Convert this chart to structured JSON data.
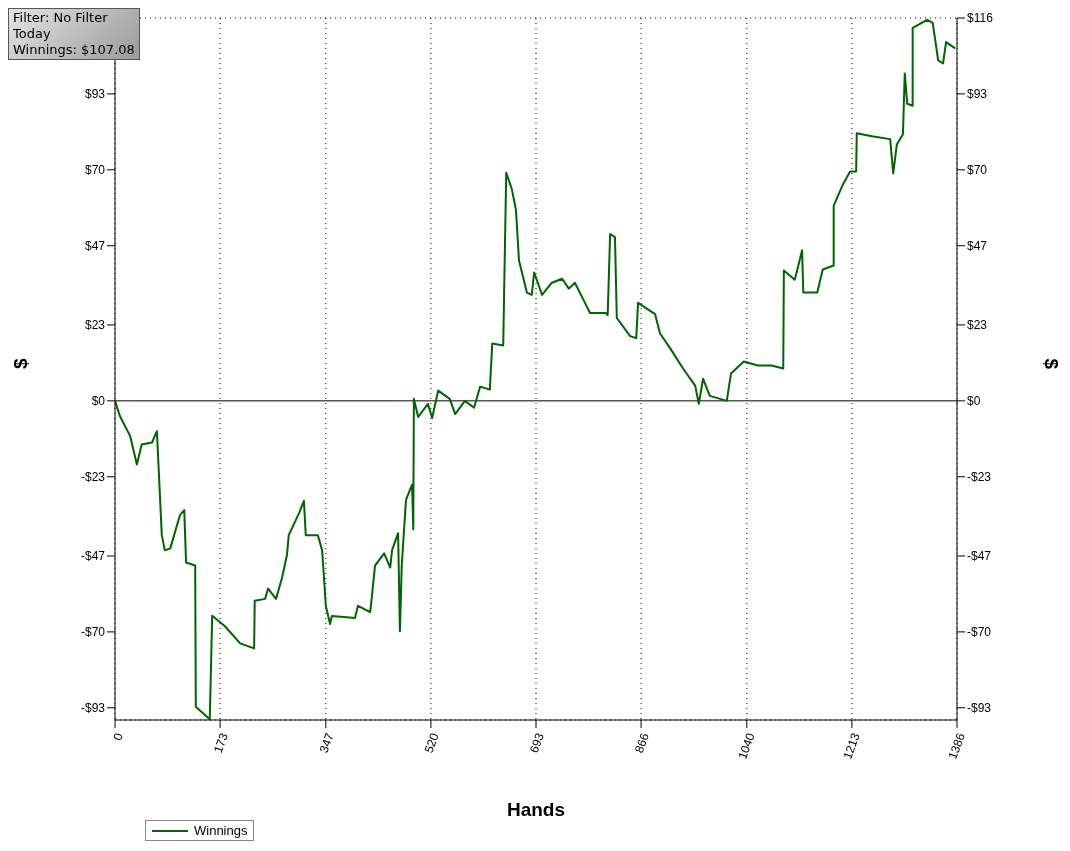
{
  "chart_data": {
    "type": "line",
    "xlabel": "Hands",
    "ylabel": "$",
    "y2label": "$",
    "annotations": [
      "Filter: No Filter",
      "Today",
      "Winnings: $107.08"
    ],
    "x": [
      0,
      8,
      25,
      36,
      44,
      61,
      69,
      77,
      82,
      91,
      107,
      114,
      117,
      132,
      133,
      156,
      160,
      181,
      206,
      229,
      230,
      247,
      252,
      265,
      275,
      283,
      286,
      303,
      311,
      314,
      334,
      341,
      347,
      354,
      357,
      395,
      400,
      420,
      423,
      428,
      443,
      453,
      456,
      466,
      469,
      472,
      479,
      489,
      491,
      492,
      499,
      515,
      522,
      532,
      551,
      560,
      576,
      591,
      601,
      617,
      621,
      639,
      644,
      653,
      660,
      665,
      678,
      686,
      690,
      703,
      719,
      736,
      747,
      757,
      772,
      782,
      808,
      811,
      815,
      823,
      826,
      848,
      858,
      861,
      889,
      897,
      914,
      935,
      955,
      961,
      968,
      979,
      996,
      1007,
      1014,
      1035,
      1058,
      1081,
      1100,
      1101,
      1119,
      1131,
      1133,
      1156,
      1165,
      1183,
      1183,
      1198,
      1210,
      1220,
      1221,
      1246,
      1276,
      1281,
      1287,
      1297,
      1300,
      1304,
      1313,
      1313,
      1337,
      1346,
      1355,
      1363,
      1368,
      1383
    ],
    "series": [
      {
        "name": "Winnings",
        "color": "#006400",
        "values": [
          0,
          -4.6,
          -10.7,
          -19.3,
          -13.2,
          -12.6,
          -9.2,
          -40.7,
          -45.3,
          -44.7,
          -34.6,
          -33.1,
          -49.0,
          -49.9,
          -92.7,
          -96.5,
          -65.1,
          -68.3,
          -73.5,
          -75.0,
          -60.6,
          -60.0,
          -56.9,
          -60.0,
          -53.6,
          -46.8,
          -40.7,
          -34.0,
          -30.3,
          -40.7,
          -40.7,
          -45.3,
          -62.1,
          -67.6,
          -65.2,
          -65.8,
          -62.1,
          -64.0,
          -59.1,
          -49.9,
          -46.2,
          -50.5,
          -45.3,
          -40.1,
          -69.8,
          -49.9,
          -30.0,
          -25.4,
          -38.9,
          0.6,
          -4.9,
          -0.9,
          -5.2,
          3.1,
          0.6,
          -4.0,
          0,
          -2.1,
          4.3,
          3.4,
          17.4,
          16.8,
          69.1,
          64.3,
          57.9,
          42.5,
          32.8,
          32.1,
          38.9,
          32.1,
          35.8,
          37.0,
          34.0,
          35.8,
          30.3,
          26.6,
          26.6,
          26.0,
          50.5,
          49.6,
          25.1,
          19.6,
          19.0,
          29.7,
          26.3,
          20.5,
          15.9,
          9.8,
          4.6,
          -0.9,
          6.7,
          1.5,
          0.6,
          0,
          8.3,
          11.9,
          10.7,
          10.7,
          9.8,
          39.5,
          36.7,
          45.6,
          32.8,
          32.8,
          39.8,
          41.0,
          59.1,
          65.5,
          69.5,
          69.5,
          81.1,
          80.2,
          79.3,
          68.9,
          77.7,
          80.8,
          99.2,
          90.0,
          89.4,
          113.0,
          115.4,
          114.5,
          103.2,
          102.2,
          108.7,
          106.8
        ]
      }
    ],
    "xlim": [
      0,
      1386
    ],
    "xticks": [
      0,
      173,
      347,
      520,
      693,
      866,
      1040,
      1213,
      1386
    ],
    "ylim": [
      -96.7,
      116
    ],
    "yticks": [
      {
        "value": -93,
        "label": "-$93"
      },
      {
        "value": -70,
        "label": "-$70"
      },
      {
        "value": -47,
        "label": "-$47"
      },
      {
        "value": -23,
        "label": "-$23"
      },
      {
        "value": 0,
        "label": "$0"
      },
      {
        "value": 23,
        "label": "$23"
      },
      {
        "value": 47,
        "label": "$47"
      },
      {
        "value": 70,
        "label": "$70"
      },
      {
        "value": 93,
        "label": "$93"
      }
    ],
    "y2lim": [
      -96.7,
      116
    ],
    "y2ticks": [
      {
        "value": -93,
        "label": "-$93"
      },
      {
        "value": -70,
        "label": "-$70"
      },
      {
        "value": -47,
        "label": "-$47"
      },
      {
        "value": -23,
        "label": "-$23"
      },
      {
        "value": 0,
        "label": "$0"
      },
      {
        "value": 23,
        "label": "$23"
      },
      {
        "value": 47,
        "label": "$47"
      },
      {
        "value": 70,
        "label": "$70"
      },
      {
        "value": 93,
        "label": "$93"
      },
      {
        "value": 116,
        "label": "$116"
      }
    ],
    "ref_lines": [
      {
        "axis": "y",
        "value": 0,
        "color": "#000000"
      }
    ],
    "grid": true,
    "legend": "bottom left",
    "marker": "none",
    "line_style": "solid"
  }
}
